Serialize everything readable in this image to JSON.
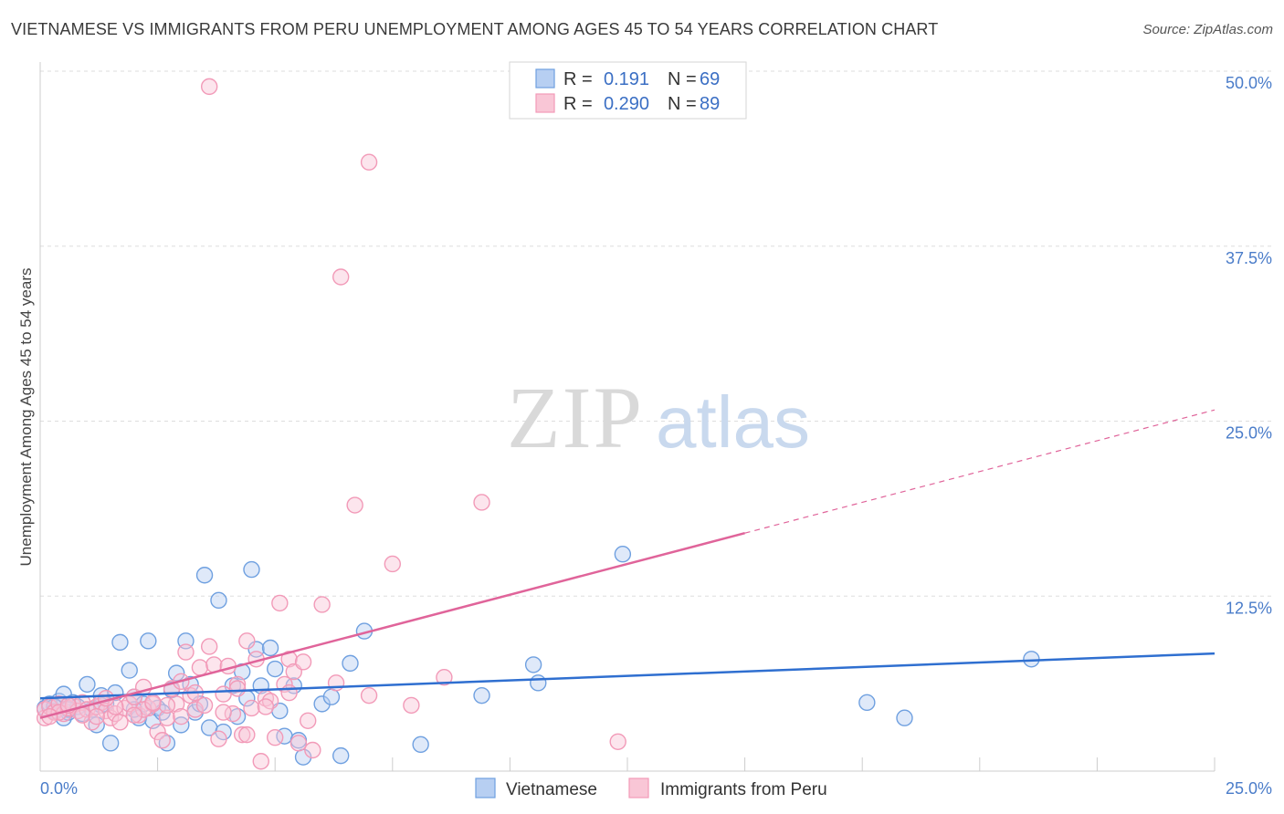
{
  "header": {
    "title": "VIETNAMESE VS IMMIGRANTS FROM PERU UNEMPLOYMENT AMONG AGES 45 TO 54 YEARS CORRELATION CHART",
    "source": "Source: ZipAtlas.com"
  },
  "watermark": {
    "zip": "ZIP",
    "atlas": "atlas"
  },
  "chart_data": {
    "type": "scatter",
    "title": "VIETNAMESE VS IMMIGRANTS FROM PERU UNEMPLOYMENT AMONG AGES 45 TO 54 YEARS CORRELATION CHART",
    "xlabel": "",
    "ylabel": "Unemployment Among Ages 45 to 54 years",
    "xlim": [
      0,
      25
    ],
    "ylim": [
      0,
      50
    ],
    "x_tick_labels": [
      "0.0%",
      "25.0%"
    ],
    "y_ticks": [
      12.5,
      25.0,
      37.5,
      50.0
    ],
    "y_tick_labels": [
      "12.5%",
      "25.0%",
      "37.5%",
      "50.0%"
    ],
    "legend": {
      "placement": "top-center",
      "entries": [
        {
          "r_label": "R =",
          "r_value": "0.191",
          "n_label": "N =",
          "n_value": "69"
        },
        {
          "r_label": "R =",
          "r_value": "0.290",
          "n_label": "N =",
          "n_value": "89"
        }
      ]
    },
    "series": [
      {
        "name": "Vietnamese",
        "color": "#6fa0e0",
        "fill": "#b7cff2",
        "line_color": "#2f6fd0",
        "trend": {
          "x": [
            0,
            25
          ],
          "y": [
            5.2,
            8.4
          ],
          "dashed_from": null
        },
        "points": [
          [
            0.1,
            4.5
          ],
          [
            0.2,
            4.8
          ],
          [
            0.3,
            4.3
          ],
          [
            0.4,
            5.0
          ],
          [
            0.5,
            3.8
          ],
          [
            0.5,
            5.5
          ],
          [
            0.6,
            4.2
          ],
          [
            0.7,
            4.9
          ],
          [
            0.8,
            4.6
          ],
          [
            0.9,
            4.1
          ],
          [
            1.0,
            6.2
          ],
          [
            1.1,
            4.4
          ],
          [
            1.2,
            3.3
          ],
          [
            1.3,
            5.4
          ],
          [
            1.4,
            4.8
          ],
          [
            1.5,
            2.0
          ],
          [
            1.6,
            5.6
          ],
          [
            1.7,
            9.2
          ],
          [
            1.9,
            7.2
          ],
          [
            2.0,
            5.3
          ],
          [
            2.1,
            3.8
          ],
          [
            2.2,
            4.8
          ],
          [
            2.3,
            9.3
          ],
          [
            2.4,
            3.6
          ],
          [
            2.5,
            4.5
          ],
          [
            2.6,
            4.2
          ],
          [
            2.7,
            2.0
          ],
          [
            2.8,
            5.8
          ],
          [
            2.9,
            7.0
          ],
          [
            3.0,
            3.3
          ],
          [
            3.1,
            9.3
          ],
          [
            3.2,
            6.2
          ],
          [
            3.3,
            4.2
          ],
          [
            3.4,
            4.8
          ],
          [
            3.5,
            14.0
          ],
          [
            3.6,
            3.1
          ],
          [
            3.8,
            12.2
          ],
          [
            3.9,
            2.8
          ],
          [
            4.1,
            6.1
          ],
          [
            4.2,
            3.9
          ],
          [
            4.3,
            7.1
          ],
          [
            4.4,
            5.2
          ],
          [
            4.5,
            14.4
          ],
          [
            4.6,
            8.7
          ],
          [
            4.7,
            6.1
          ],
          [
            4.9,
            8.8
          ],
          [
            5.0,
            7.3
          ],
          [
            5.1,
            4.3
          ],
          [
            5.2,
            2.5
          ],
          [
            5.4,
            6.1
          ],
          [
            5.5,
            2.2
          ],
          [
            5.6,
            1.0
          ],
          [
            6.0,
            4.8
          ],
          [
            6.2,
            5.3
          ],
          [
            6.4,
            1.1
          ],
          [
            6.6,
            7.7
          ],
          [
            6.9,
            10.0
          ],
          [
            8.1,
            1.9
          ],
          [
            9.4,
            5.4
          ],
          [
            10.5,
            7.6
          ],
          [
            10.6,
            6.3
          ],
          [
            12.4,
            15.5
          ],
          [
            17.6,
            4.9
          ],
          [
            18.4,
            3.8
          ],
          [
            21.1,
            8.0
          ],
          [
            0.3,
            4.6
          ],
          [
            0.6,
            4.4
          ],
          [
            1.3,
            4.7
          ],
          [
            2.0,
            4.4
          ]
        ]
      },
      {
        "name": "Immigrants from Peru",
        "color": "#f29ab8",
        "fill": "#f9c6d6",
        "line_color": "#e0649a",
        "trend": {
          "x": [
            0,
            25
          ],
          "y": [
            3.8,
            25.8
          ],
          "dashed_from": 15
        },
        "points": [
          [
            0.1,
            3.8
          ],
          [
            0.1,
            4.4
          ],
          [
            0.2,
            4.6
          ],
          [
            0.3,
            4.2
          ],
          [
            0.4,
            4.8
          ],
          [
            0.5,
            4.1
          ],
          [
            0.6,
            4.5
          ],
          [
            0.7,
            4.7
          ],
          [
            0.8,
            4.3
          ],
          [
            0.9,
            4.9
          ],
          [
            1.0,
            4.4
          ],
          [
            1.1,
            3.5
          ],
          [
            1.2,
            4.6
          ],
          [
            1.3,
            4.9
          ],
          [
            1.4,
            4.3
          ],
          [
            1.5,
            3.8
          ],
          [
            1.6,
            4.1
          ],
          [
            1.7,
            3.5
          ],
          [
            1.8,
            4.5
          ],
          [
            1.9,
            4.8
          ],
          [
            2.0,
            5.3
          ],
          [
            2.1,
            4.0
          ],
          [
            2.2,
            6.0
          ],
          [
            2.3,
            4.5
          ],
          [
            2.4,
            4.8
          ],
          [
            2.5,
            2.8
          ],
          [
            2.6,
            2.2
          ],
          [
            2.7,
            3.8
          ],
          [
            2.8,
            5.9
          ],
          [
            2.9,
            4.8
          ],
          [
            3.0,
            6.4
          ],
          [
            3.1,
            8.5
          ],
          [
            3.2,
            5.4
          ],
          [
            3.3,
            4.4
          ],
          [
            3.4,
            7.4
          ],
          [
            3.5,
            4.7
          ],
          [
            3.6,
            8.9
          ],
          [
            3.7,
            7.6
          ],
          [
            3.8,
            2.3
          ],
          [
            3.9,
            5.5
          ],
          [
            4.0,
            7.5
          ],
          [
            4.1,
            4.1
          ],
          [
            4.2,
            6.2
          ],
          [
            4.3,
            2.6
          ],
          [
            4.4,
            9.3
          ],
          [
            4.5,
            4.5
          ],
          [
            4.6,
            8.0
          ],
          [
            4.7,
            0.7
          ],
          [
            4.8,
            5.2
          ],
          [
            4.9,
            5.0
          ],
          [
            5.0,
            2.4
          ],
          [
            5.1,
            12.0
          ],
          [
            5.2,
            6.2
          ],
          [
            5.3,
            8.0
          ],
          [
            5.4,
            7.1
          ],
          [
            5.5,
            2.0
          ],
          [
            5.6,
            7.8
          ],
          [
            5.7,
            3.6
          ],
          [
            5.8,
            1.5
          ],
          [
            6.0,
            11.9
          ],
          [
            6.3,
            6.3
          ],
          [
            6.7,
            19.0
          ],
          [
            7.0,
            5.4
          ],
          [
            7.5,
            14.8
          ],
          [
            7.9,
            4.7
          ],
          [
            8.6,
            6.7
          ],
          [
            9.4,
            19.2
          ],
          [
            12.3,
            2.1
          ],
          [
            3.6,
            48.9
          ],
          [
            7.0,
            43.5
          ],
          [
            6.4,
            35.3
          ],
          [
            0.4,
            4.2
          ],
          [
            0.9,
            4.0
          ],
          [
            1.6,
            4.6
          ],
          [
            2.2,
            4.4
          ],
          [
            2.7,
            4.7
          ],
          [
            3.3,
            5.6
          ],
          [
            4.2,
            5.9
          ],
          [
            4.8,
            4.6
          ],
          [
            1.2,
            3.9
          ],
          [
            0.2,
            3.9
          ],
          [
            0.6,
            4.7
          ],
          [
            1.4,
            5.2
          ],
          [
            2.0,
            4.0
          ],
          [
            2.4,
            4.9
          ],
          [
            3.0,
            3.9
          ],
          [
            3.9,
            4.2
          ],
          [
            4.4,
            2.6
          ],
          [
            5.3,
            5.6
          ]
        ]
      }
    ]
  }
}
